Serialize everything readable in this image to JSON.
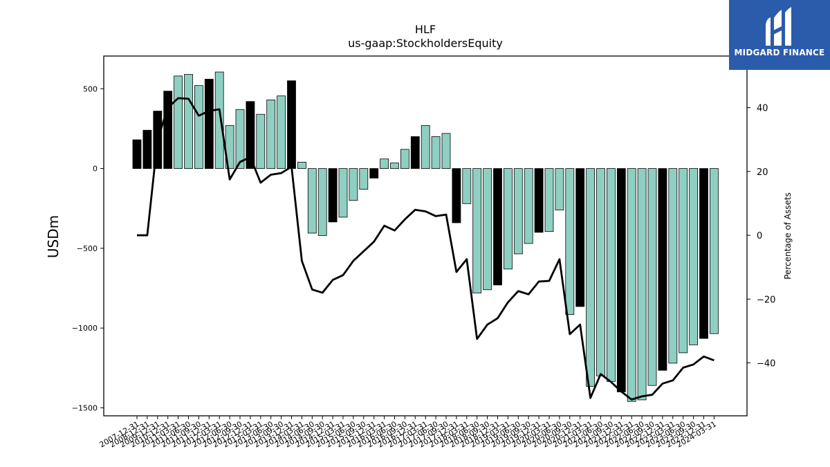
{
  "brand": {
    "name": "MIDGARD FINANCE",
    "logo_icon": "midgard-m-logo-icon",
    "background": "#2b5bab"
  },
  "chart_data": {
    "type": "bar",
    "title": "HLF",
    "subtitle": "us-gaap:StockholdersEquity",
    "ylabel": "USDm",
    "y2label": "Percentage of Assets",
    "ylim": [
      -1550,
      705
    ],
    "y2lim": [
      -56.6,
      56.2
    ],
    "yticks": [
      -1500,
      -1000,
      -500,
      0,
      500
    ],
    "y2ticks": [
      -40,
      -20,
      0,
      20,
      40
    ],
    "bar_colors": {
      "q4": "#000000",
      "other": "#8ecfc2"
    },
    "line_color": "#000000",
    "grid": false,
    "xtick_labels": [
      "2007-12-31",
      "2008-12-31",
      "2009-12-31",
      "2010-12-31",
      "2011-03-31",
      "2011-06-30",
      "2011-09-30",
      "2011-12-31",
      "2012-03-31",
      "2012-06-30",
      "2012-09-30",
      "2012-12-31",
      "2013-03-31",
      "2013-06-30",
      "2013-09-30",
      "2013-12-31",
      "2014-03-31",
      "2014-06-30",
      "2014-09-30",
      "2014-12-31",
      "2015-03-31",
      "2015-06-30",
      "2015-09-30",
      "2015-12-31",
      "2016-03-31",
      "2016-06-30",
      "2016-09-30",
      "2016-12-31",
      "2017-03-31",
      "2017-06-30",
      "2017-09-30",
      "2017-12-31",
      "2018-03-31",
      "2018-06-30",
      "2018-09-30",
      "2018-12-31",
      "2019-03-31",
      "2019-06-30",
      "2019-09-30",
      "2019-12-31",
      "2020-03-31",
      "2020-06-30",
      "2020-09-30",
      "2020-12-31",
      "2021-03-31",
      "2021-06-30",
      "2021-09-30",
      "2021-12-31",
      "2022-03-31",
      "2022-06-30",
      "2022-09-30",
      "2022-12-31",
      "2023-03-31",
      "2023-06-30",
      "2023-09-30",
      "2023-12-31",
      "2024-03-31"
    ],
    "categories": [
      "2007-12-31",
      "2008-12-31",
      "2009-12-31",
      "2010-12-31",
      "2011-03-31",
      "2011-06-30",
      "2011-09-30",
      "2011-12-31",
      "2012-03-31",
      "2012-06-30",
      "2012-09-30",
      "2012-12-31",
      "2013-03-31",
      "2013-06-30",
      "2013-09-30",
      "2013-12-31",
      "2014-03-31",
      "2014-06-30",
      "2014-09-30",
      "2014-12-31",
      "2015-03-31",
      "2015-06-30",
      "2015-09-30",
      "2015-12-31",
      "2016-03-31",
      "2016-06-30",
      "2016-09-30",
      "2016-12-31",
      "2017-03-31",
      "2017-06-30",
      "2017-09-30",
      "2017-12-31",
      "2018-03-31",
      "2018-06-30",
      "2018-09-30",
      "2018-12-31",
      "2019-03-31",
      "2019-06-30",
      "2019-09-30",
      "2019-12-31",
      "2020-03-31",
      "2020-06-30",
      "2020-09-30",
      "2020-12-31",
      "2021-03-31",
      "2021-06-30",
      "2021-09-30",
      "2021-12-31",
      "2022-03-31",
      "2022-06-30",
      "2022-09-30",
      "2022-12-31",
      "2023-03-31",
      "2023-06-30",
      "2023-09-30",
      "2023-12-31",
      "2024-03-31"
    ],
    "series": [
      {
        "type": "bar",
        "axis": "left",
        "values": [
          180,
          240,
          360,
          485,
          580,
          590,
          520,
          560,
          605,
          270,
          370,
          420,
          340,
          430,
          455,
          550,
          40,
          -405,
          -420,
          -335,
          -305,
          -200,
          -130,
          -60,
          60,
          35,
          120,
          200,
          270,
          200,
          220,
          -340,
          -220,
          -780,
          -760,
          -730,
          -630,
          -535,
          -470,
          -400,
          -395,
          -260,
          -915,
          -865,
          -1365,
          -1300,
          -1335,
          -1400,
          -1460,
          -1450,
          -1360,
          -1265,
          -1220,
          -1155,
          -1105,
          -1065,
          -1035
        ]
      },
      {
        "type": "line",
        "axis": "right",
        "values": [
          0,
          0,
          30,
          40,
          43,
          42.8,
          37.5,
          39,
          39.5,
          17.5,
          23,
          24.5,
          16.5,
          19,
          19.5,
          21.5,
          -8,
          -17,
          -18,
          -14,
          -12.5,
          -8,
          -5,
          -2,
          3,
          1.5,
          5,
          8,
          7.5,
          6,
          6.5,
          -11.5,
          -7.5,
          -32.5,
          -28,
          -26,
          -21,
          -17.5,
          -18.5,
          -14.5,
          -14.3,
          -7.5,
          -31,
          -28,
          -51,
          -43.5,
          -46,
          -49,
          -51.5,
          -50.5,
          -50,
          -46.5,
          -45.5,
          -41.5,
          -40.5,
          -38,
          -39.2
        ]
      }
    ]
  }
}
